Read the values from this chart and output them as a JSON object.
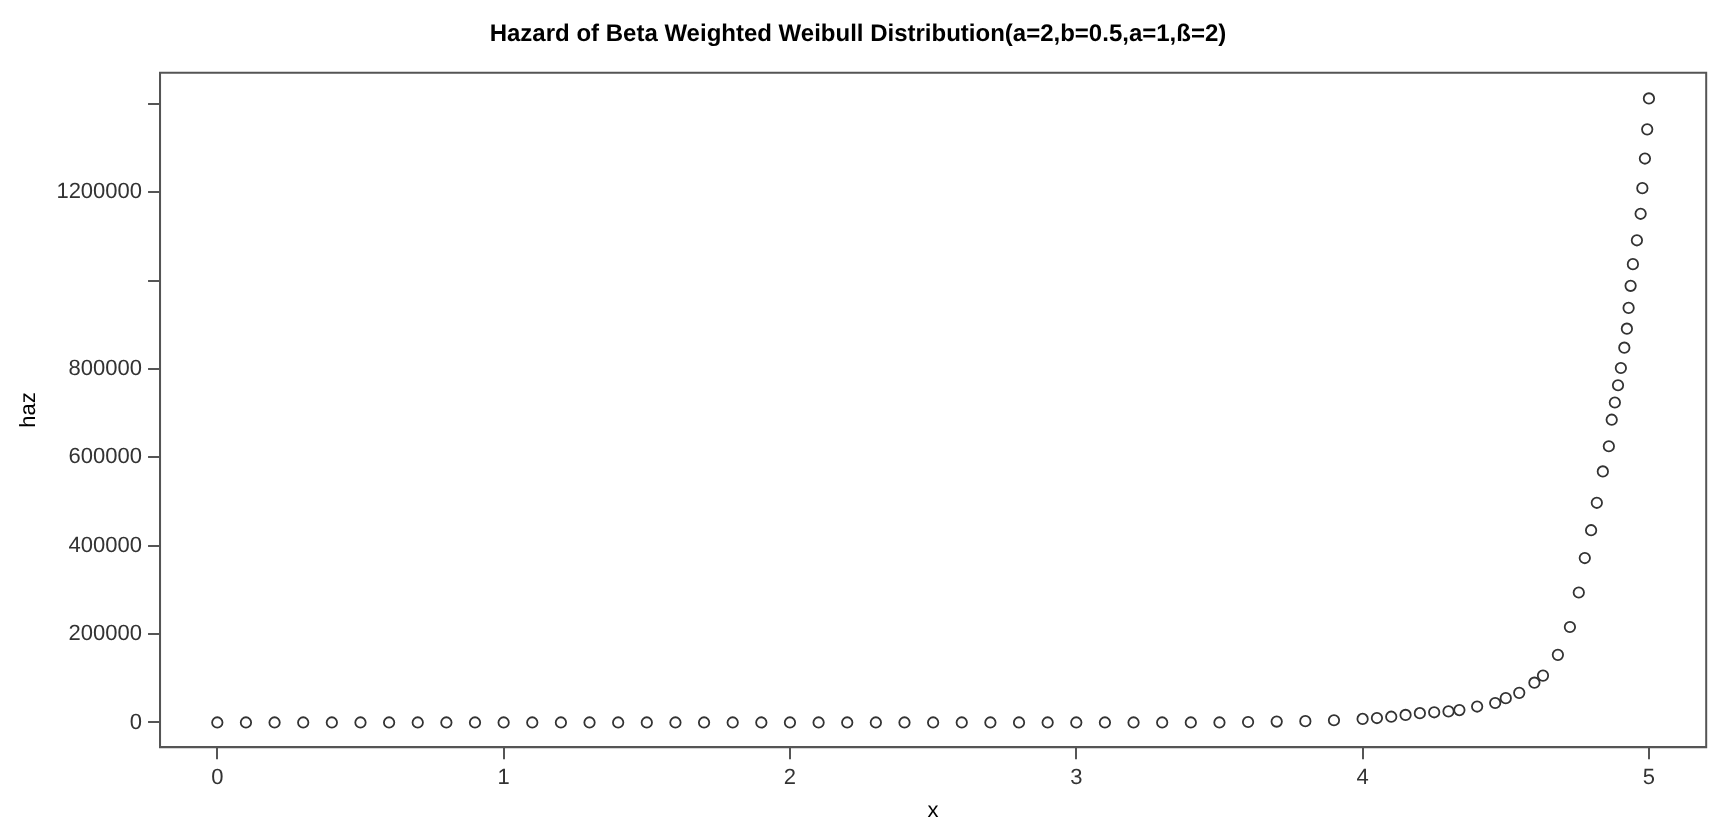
{
  "chart_data": {
    "type": "scatter",
    "title": "Hazard of Beta Weighted Weibull Distribution(a=2,b=0.5,a=1,ß=2)",
    "xlabel": "x",
    "ylabel": "haz",
    "xlim": [
      -0.2,
      5.2
    ],
    "xticks": [
      0,
      1,
      2,
      3,
      4,
      5
    ],
    "ylim": [
      -56000,
      1470000
    ],
    "yticks": [
      0,
      200000,
      400000,
      600000,
      800000,
      {
        "value": 1000000,
        "label": null
      },
      1200000,
      {
        "value": 1400000,
        "label": null
      }
    ],
    "grid": false,
    "marker": "circle",
    "legend": false,
    "series": [
      {
        "color": "#333333",
        "x": [
          0,
          0.1,
          0.2,
          0.3,
          0.4,
          0.5,
          0.6,
          0.7,
          0.8,
          0.9,
          1,
          1.1,
          1.2,
          1.3,
          1.4,
          1.5,
          1.6,
          1.7,
          1.8,
          1.9,
          2,
          2.1,
          2.2,
          2.3,
          2.4,
          2.5,
          2.6,
          2.7,
          2.8,
          2.9,
          3,
          3.1,
          3.2,
          3.3,
          3.4,
          3.5,
          3.6,
          3.7,
          3.8,
          3.9,
          4,
          4.05,
          4.1,
          4.15,
          4.2,
          4.25,
          4.3,
          4.338,
          4.4,
          4.463,
          4.5,
          4.547,
          4.6,
          4.63,
          4.682,
          4.724,
          4.755,
          4.776,
          4.798,
          4.818,
          4.839,
          4.86,
          4.87,
          4.881,
          4.892,
          4.902,
          4.914,
          4.923,
          4.929,
          4.936,
          4.944,
          4.958,
          4.971,
          4.977,
          4.986,
          4.994,
          5.0
        ],
        "values": [
          0,
          0,
          0,
          0,
          0,
          0,
          0,
          0,
          0,
          0,
          0,
          0,
          0,
          0,
          0,
          0,
          0,
          0,
          0,
          0,
          0,
          0,
          0,
          0,
          0,
          0,
          0,
          0,
          0,
          0,
          0,
          0,
          0,
          0,
          0,
          0,
          1000,
          2000,
          3000,
          5000,
          8000,
          10000,
          13000,
          17000,
          21000,
          23000,
          25000,
          28000,
          36000,
          44000,
          55000,
          67000,
          90000,
          106000,
          153000,
          216000,
          294000,
          372000,
          435000,
          497000,
          568000,
          625000,
          685000,
          724000,
          763000,
          802000,
          848000,
          891000,
          938000,
          988000,
          1037000,
          1091000,
          1151000,
          1209000,
          1276000,
          1342000,
          1412000
        ]
      }
    ]
  }
}
